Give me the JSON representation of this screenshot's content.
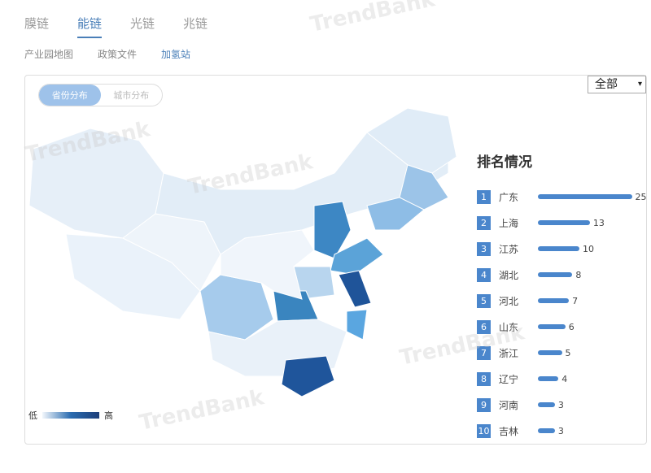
{
  "tabs": [
    "膜链",
    "能链",
    "光链",
    "兆链"
  ],
  "active_tab": 1,
  "subtabs": [
    "产业园地图",
    "政策文件",
    "加氢站"
  ],
  "toggle": {
    "province": "省份分布",
    "city": "城市分布"
  },
  "select": {
    "value": "全部"
  },
  "legend": {
    "low": "低",
    "high": "高",
    "colors": [
      "#f2f7fc",
      "#1d3f7a"
    ]
  },
  "ranking": {
    "title": "排名情况",
    "bar_color": "#4a86cc",
    "items": [
      {
        "rank": "1",
        "name": "广东",
        "value": 25
      },
      {
        "rank": "2",
        "name": "上海",
        "value": 13
      },
      {
        "rank": "3",
        "name": "江苏",
        "value": 10
      },
      {
        "rank": "4",
        "name": "湖北",
        "value": 8
      },
      {
        "rank": "5",
        "name": "河北",
        "value": 7
      },
      {
        "rank": "6",
        "name": "山东",
        "value": 6
      },
      {
        "rank": "7",
        "name": "浙江",
        "value": 5
      },
      {
        "rank": "8",
        "name": "辽宁",
        "value": 4
      },
      {
        "rank": "9",
        "name": "河南",
        "value": 3
      },
      {
        "rank": "10",
        "name": "吉林",
        "value": 3
      }
    ]
  },
  "watermark": "TrendBank 势银"
}
